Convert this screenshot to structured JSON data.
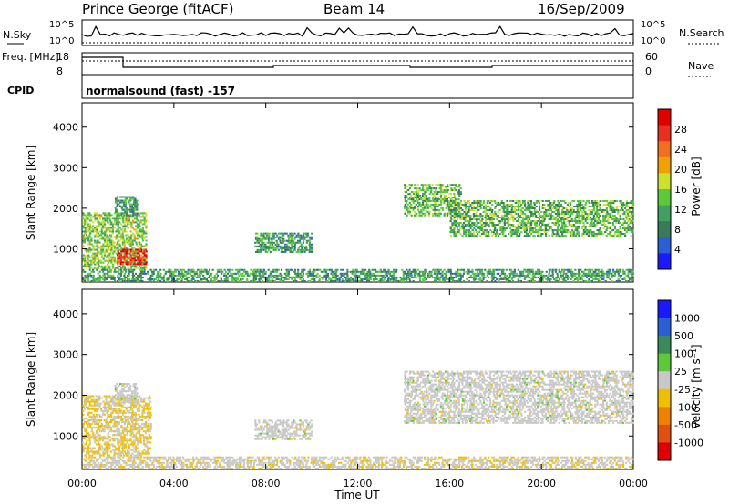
{
  "header": {
    "station": "Prince George (fitACF)",
    "beam": "Beam 14",
    "date": "16/Sep/2009"
  },
  "colors": {
    "power_scale": [
      "#1a1aff",
      "#2b5fd6",
      "#3a7a5a",
      "#3fa060",
      "#5cc83a",
      "#cce030",
      "#f0a000",
      "#f07020",
      "#e83020",
      "#e00000"
    ],
    "velocity_scale": [
      "#1a1aff",
      "#2b5fd6",
      "#3a8a5a",
      "#5cc83a",
      "#c8c8c8",
      "#f0c000",
      "#f08000",
      "#e05010",
      "#e00000"
    ],
    "noise_line": "#000000"
  },
  "chart_data": [
    {
      "type": "line",
      "panel": "noise",
      "left_labels": {
        "name": "N.Sky",
        "ticks": [
          "10^5",
          "10^0"
        ]
      },
      "right_labels": {
        "name": "N.Search",
        "ticks": [
          "10^5",
          "10^0"
        ]
      }
    },
    {
      "type": "line",
      "panel": "frequency",
      "left_labels": {
        "name": "Freq. [MHz]",
        "ticks": [
          "18",
          "8"
        ]
      },
      "right_labels": {
        "name": "Nave",
        "ticks": [
          "60",
          "0"
        ]
      },
      "cpid_label": "CPID",
      "cpid_value": "normalsound (fast) -157"
    },
    {
      "type": "heatmap",
      "panel": "power",
      "ylabel": "Slant Range [km]",
      "yticks": [
        1000,
        2000,
        3000,
        4000
      ],
      "ylim": [
        180,
        4600
      ],
      "colorbar": {
        "label": "Power [dB]",
        "ticks": [
          "28",
          "24",
          "20",
          "16",
          "12",
          "8",
          "4"
        ],
        "range": [
          0,
          30
        ]
      },
      "echo_regions": [
        {
          "t0": 0.0,
          "t1": 2.8,
          "r0": 500,
          "r1": 1900,
          "power": 14
        },
        {
          "t0": 1.5,
          "t1": 2.8,
          "r0": 600,
          "r1": 1000,
          "power": 26
        },
        {
          "t0": 1.4,
          "t1": 2.4,
          "r0": 1800,
          "r1": 2300,
          "power": 10
        },
        {
          "t0": 7.5,
          "t1": 10.0,
          "r0": 900,
          "r1": 1400,
          "power": 10
        },
        {
          "t0": 14.0,
          "t1": 16.5,
          "r0": 1800,
          "r1": 2600,
          "power": 12
        },
        {
          "t0": 16.0,
          "t1": 24.0,
          "r0": 1300,
          "r1": 2200,
          "power": 12
        },
        {
          "t0": 0.0,
          "t1": 24.0,
          "r0": 180,
          "r1": 500,
          "power": 10
        }
      ]
    },
    {
      "type": "heatmap",
      "panel": "velocity",
      "ylabel": "Slant Range [km]",
      "yticks": [
        1000,
        2000,
        3000,
        4000
      ],
      "ylim": [
        180,
        4600
      ],
      "xlabel": "Time UT",
      "xticks": [
        "00:00",
        "04:00",
        "08:00",
        "12:00",
        "16:00",
        "20:00",
        "00:00"
      ],
      "xlim": [
        0,
        24
      ],
      "colorbar": {
        "label": "Velocity [m s⁻¹]",
        "ticks": [
          "1000",
          "500",
          "100",
          "25",
          "-25",
          "-100",
          "-500",
          "-1000"
        ],
        "range": [
          -1200,
          1200
        ]
      },
      "echo_regions": [
        {
          "t0": 0.0,
          "t1": 3.0,
          "r0": 500,
          "r1": 2000,
          "velocity": -150
        },
        {
          "t0": 1.4,
          "t1": 2.4,
          "r0": 1800,
          "r1": 2300,
          "velocity": 0
        },
        {
          "t0": 7.5,
          "t1": 10.0,
          "r0": 900,
          "r1": 1400,
          "velocity": 0
        },
        {
          "t0": 14.0,
          "t1": 24.0,
          "r0": 1300,
          "r1": 2600,
          "velocity": 0
        },
        {
          "t0": 0.0,
          "t1": 24.0,
          "r0": 180,
          "r1": 500,
          "velocity": -60
        }
      ]
    }
  ]
}
